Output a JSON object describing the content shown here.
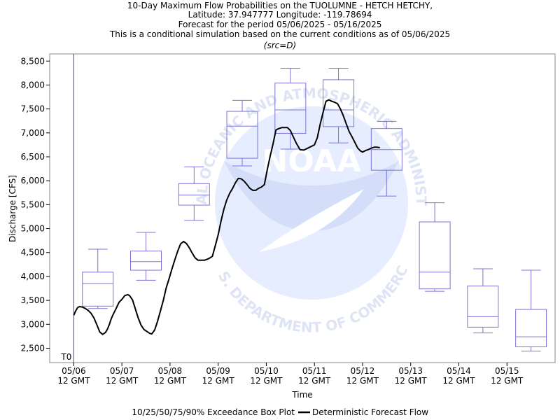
{
  "chart_data": {
    "type": "box",
    "title_lines": [
      "10-Day Maximum Flow Probabilities on the TUOLUMNE - HETCH HETCHY,",
      "Latitude: 37.947777 Longitude: -119.78694",
      "Forecast for the period 05/06/2025 - 05/16/2025",
      "This is a conditional simulation based on the current conditions as of 05/06/2025",
      "(src=D)"
    ],
    "xlabel": "Time",
    "ylabel": "Discharge [CFS]",
    "ylim": [
      2200,
      8650
    ],
    "xlim": [
      -0.5,
      10.0
    ],
    "y_ticks": [
      2500,
      3000,
      3500,
      4000,
      4500,
      5000,
      5500,
      6000,
      6500,
      7000,
      7500,
      8000,
      8500
    ],
    "y_tick_labels": [
      "2,500",
      "3,000",
      "3,500",
      "4,000",
      "4,500",
      "5,000",
      "5,500",
      "6,000",
      "6,500",
      "7,000",
      "7,500",
      "8,000",
      "8,500"
    ],
    "x_ticks": [
      0,
      1,
      2,
      3,
      4,
      5,
      6,
      7,
      8,
      9
    ],
    "x_tick_dates": [
      "05/06",
      "05/07",
      "05/08",
      "05/09",
      "05/10",
      "05/11",
      "05/12",
      "05/13",
      "05/14",
      "05/15"
    ],
    "x_tick_suffix": "12 GMT",
    "t0_label": "T0",
    "t0_x": 0,
    "legend": {
      "box_label": "10/25/50/75/90% Exceedance Box Plot",
      "line_label": "Deterministic Forecast Flow"
    },
    "watermark": {
      "top_text": "NATIONAL OCEANIC AND ATMOSPHERIC ADMINISTRATION",
      "center_text": "NOAA",
      "bottom_text": "U.S. DEPARTMENT OF COMMERCE"
    },
    "colors": {
      "box": "#7b74d8",
      "line": "#000000",
      "t0_line": "#3a3ad8"
    },
    "boxes": [
      {
        "date": "05/06",
        "x": 0.5,
        "p10": 3330,
        "p25": 3380,
        "p50": 3850,
        "p75": 4090,
        "p90": 4570
      },
      {
        "date": "05/07",
        "x": 1.5,
        "p10": 3920,
        "p25": 4130,
        "p50": 4310,
        "p75": 4530,
        "p90": 4920
      },
      {
        "date": "05/08",
        "x": 2.5,
        "p10": 5170,
        "p25": 5490,
        "p50": 5700,
        "p75": 5940,
        "p90": 6290
      },
      {
        "date": "05/09",
        "x": 3.5,
        "p10": 6310,
        "p25": 6470,
        "p50": 7140,
        "p75": 7450,
        "p90": 7680
      },
      {
        "date": "05/10",
        "x": 4.5,
        "p10": 6660,
        "p25": 6990,
        "p50": 7480,
        "p75": 8040,
        "p90": 8350
      },
      {
        "date": "05/11",
        "x": 5.5,
        "p10": 6790,
        "p25": 7130,
        "p50": 7480,
        "p75": 8110,
        "p90": 8350
      },
      {
        "date": "05/12",
        "x": 6.5,
        "p10": 5680,
        "p25": 6220,
        "p50": 6650,
        "p75": 7090,
        "p90": 7240
      },
      {
        "date": "05/13",
        "x": 7.5,
        "p10": 3690,
        "p25": 3740,
        "p50": 4090,
        "p75": 5140,
        "p90": 5540
      },
      {
        "date": "05/14",
        "x": 8.5,
        "p10": 2820,
        "p25": 2940,
        "p50": 3160,
        "p75": 3800,
        "p90": 4160
      },
      {
        "date": "05/15",
        "x": 9.5,
        "p10": 2440,
        "p25": 2530,
        "p50": 2740,
        "p75": 3310,
        "p90": 4130
      }
    ],
    "series": [
      {
        "x": [
          0.0,
          0.04,
          0.08,
          0.12,
          0.18,
          0.24,
          0.3,
          0.36,
          0.42,
          0.48,
          0.54,
          0.6,
          0.66,
          0.7,
          0.74,
          0.78,
          0.82,
          0.88,
          0.94,
          1.0,
          1.06,
          1.12,
          1.16,
          1.22,
          1.28,
          1.34,
          1.4,
          1.46,
          1.52,
          1.58,
          1.62,
          1.68,
          1.74,
          1.8,
          1.86,
          1.92,
          1.98,
          2.04,
          2.1,
          2.16,
          2.22,
          2.28,
          2.34,
          2.4,
          2.46,
          2.52,
          2.58,
          2.64,
          2.72,
          2.8,
          2.88,
          2.94,
          3.0,
          3.06,
          3.12,
          3.18,
          3.24,
          3.3,
          3.36,
          3.42,
          3.48,
          3.54,
          3.6,
          3.66,
          3.72,
          3.78,
          3.84,
          3.9,
          3.96,
          4.02,
          4.08,
          4.14,
          4.2,
          4.26,
          4.32,
          4.38,
          4.44,
          4.5,
          4.56,
          4.62,
          4.7,
          4.78,
          4.86,
          4.94,
          5.0,
          5.06,
          5.12,
          5.18,
          5.24,
          5.3,
          5.36,
          5.42,
          5.48,
          5.54,
          5.6,
          5.66,
          5.72,
          5.78,
          5.84,
          5.9,
          5.96,
          6.0
        ],
        "y": [
          3190,
          3280,
          3350,
          3370,
          3360,
          3330,
          3290,
          3230,
          3130,
          2990,
          2840,
          2790,
          2830,
          2900,
          3000,
          3120,
          3210,
          3330,
          3460,
          3520,
          3600,
          3620,
          3600,
          3510,
          3320,
          3130,
          2980,
          2890,
          2850,
          2810,
          2800,
          2880,
          3060,
          3280,
          3500,
          3760,
          3950,
          4160,
          4350,
          4530,
          4680,
          4730,
          4690,
          4600,
          4490,
          4390,
          4340,
          4340,
          4340,
          4370,
          4420,
          4640,
          4870,
          5160,
          5410,
          5600,
          5740,
          5840,
          5960,
          6050,
          6040,
          5990,
          5920,
          5840,
          5800,
          5800,
          5840,
          5870,
          5920,
          6230,
          6510,
          6770,
          7060,
          7090,
          7110,
          7110,
          7110,
          7050,
          6920,
          6790,
          6650,
          6640,
          6680,
          6720,
          6750,
          6900,
          7180,
          7430,
          7660,
          7690,
          7660,
          7640,
          7610,
          7500,
          7360,
          7190,
          7030,
          6920,
          6800,
          6680,
          6620,
          6600
        ]
      }
    ],
    "series_tail": {
      "x": [
        6.06,
        6.12,
        6.18,
        6.24,
        6.3,
        6.36
      ],
      "y": [
        6630,
        6650,
        6680,
        6700,
        6700,
        6690
      ]
    }
  }
}
